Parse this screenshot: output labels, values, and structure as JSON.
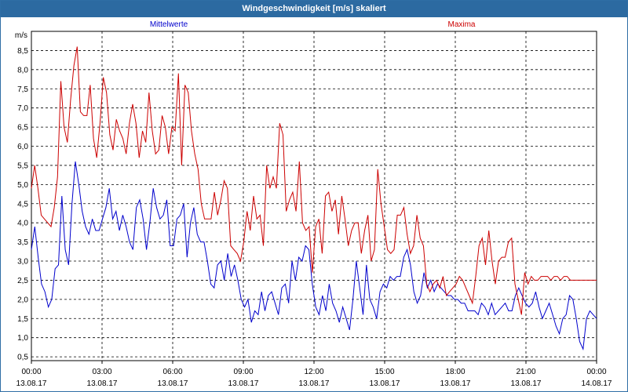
{
  "window": {
    "title": "Windgeschwindigkeit [m/s] skaliert"
  },
  "chart_data": {
    "type": "line",
    "title": "Windgeschwindigkeit [m/s] skaliert",
    "ylabel": "m/s",
    "ylim": [
      0.4,
      9.0
    ],
    "xlim_hours": [
      0,
      24
    ],
    "grid": true,
    "yticks": [
      "0,5",
      "1,0",
      "1,5",
      "2,0",
      "2,5",
      "3,0",
      "3,5",
      "4,0",
      "4,5",
      "5,0",
      "5,5",
      "6,0",
      "6,5",
      "7,0",
      "7,5",
      "8,0",
      "8,5"
    ],
    "xticks": [
      {
        "time": "00:00",
        "date": "13.08.17"
      },
      {
        "time": "03:00",
        "date": "13.08.17"
      },
      {
        "time": "06:00",
        "date": "13.08.17"
      },
      {
        "time": "09:00",
        "date": "13.08.17"
      },
      {
        "time": "12:00",
        "date": "13.08.17"
      },
      {
        "time": "15:00",
        "date": "13.08.17"
      },
      {
        "time": "18:00",
        "date": "13.08.17"
      },
      {
        "time": "21:00",
        "date": "13.08.17"
      },
      {
        "time": "00:00",
        "date": "14.08.17"
      }
    ],
    "series": [
      {
        "name": "Mittelwerte",
        "color": "#0000cc",
        "values": [
          3.3,
          3.9,
          3.1,
          2.4,
          2.2,
          1.8,
          2.0,
          2.8,
          2.9,
          4.7,
          3.3,
          2.9,
          4.5,
          5.6,
          5.0,
          4.3,
          3.9,
          3.7,
          4.1,
          3.8,
          3.8,
          4.1,
          4.4,
          4.9,
          4.1,
          4.3,
          3.8,
          4.2,
          3.9,
          3.5,
          3.3,
          4.4,
          4.6,
          4.1,
          3.3,
          4.0,
          4.9,
          4.4,
          4.1,
          4.2,
          4.6,
          3.4,
          3.4,
          4.1,
          4.2,
          4.5,
          3.1,
          4.0,
          4.4,
          3.7,
          3.5,
          3.5,
          3.0,
          2.4,
          2.3,
          2.9,
          3.0,
          2.5,
          3.2,
          2.6,
          2.9,
          2.5,
          2.0,
          1.8,
          2.0,
          1.4,
          1.7,
          1.6,
          2.2,
          1.7,
          2.1,
          2.2,
          1.9,
          1.6,
          2.3,
          2.4,
          1.9,
          3.0,
          2.5,
          3.1,
          3.0,
          3.4,
          3.3,
          2.4,
          1.8,
          1.6,
          2.1,
          1.7,
          2.4,
          1.9,
          1.7,
          1.4,
          1.8,
          1.5,
          1.2,
          2.0,
          3.0,
          2.3,
          1.6,
          2.9,
          2.0,
          1.8,
          1.5,
          2.2,
          2.4,
          2.3,
          2.6,
          2.5,
          2.6,
          2.6,
          3.1,
          3.3,
          2.9,
          2.2,
          1.9,
          2.1,
          2.7,
          2.3,
          2.5,
          2.2,
          2.4,
          2.3,
          2.2,
          2.1,
          2.1,
          2.0,
          2.0,
          1.9,
          1.9,
          1.7,
          1.7,
          1.7,
          1.6,
          1.9,
          1.8,
          1.6,
          1.9,
          1.6,
          1.7,
          1.8,
          1.9,
          1.7,
          1.7,
          2.1,
          2.3,
          2.1,
          1.9,
          1.8,
          1.9,
          2.2,
          1.8,
          1.5,
          1.7,
          1.9,
          1.6,
          1.3,
          1.1,
          1.5,
          1.6,
          2.1,
          2.0,
          1.5,
          0.9,
          0.7,
          1.5,
          1.7,
          1.6,
          1.5
        ]
      },
      {
        "name": "Maxima",
        "color": "#cc0000",
        "values": [
          4.9,
          5.5,
          4.9,
          4.2,
          4.1,
          4.0,
          3.9,
          4.4,
          5.2,
          7.7,
          6.5,
          6.1,
          7.2,
          8.1,
          8.6,
          6.9,
          6.8,
          6.8,
          7.6,
          6.2,
          5.7,
          6.6,
          7.8,
          7.4,
          6.3,
          5.9,
          6.7,
          6.4,
          6.2,
          5.8,
          6.6,
          7.1,
          6.6,
          5.7,
          6.4,
          6.1,
          7.4,
          6.4,
          5.8,
          5.9,
          6.8,
          6.5,
          5.8,
          6.5,
          6.4,
          7.9,
          5.5,
          7.6,
          7.4,
          6.4,
          5.8,
          5.4,
          4.5,
          4.1,
          4.1,
          4.1,
          4.8,
          4.2,
          4.6,
          5.1,
          4.9,
          3.4,
          3.3,
          3.2,
          3.0,
          3.5,
          4.3,
          3.8,
          4.7,
          4.1,
          4.2,
          3.4,
          5.5,
          4.9,
          5.2,
          4.9,
          6.6,
          6.3,
          4.3,
          4.6,
          4.8,
          4.3,
          5.6,
          4.0,
          3.8,
          3.9,
          2.7,
          3.9,
          4.1,
          3.2,
          4.7,
          4.8,
          4.3,
          4.6,
          3.7,
          4.7,
          4.1,
          3.4,
          3.8,
          4.0,
          4.0,
          3.2,
          3.8,
          4.2,
          3.0,
          3.3,
          5.4,
          4.5,
          3.9,
          3.3,
          3.2,
          3.3,
          4.2,
          4.2,
          4.4,
          3.7,
          3.2,
          3.4,
          4.2,
          3.6,
          3.4,
          2.4,
          2.2,
          2.4,
          2.5,
          2.3,
          2.6,
          2.1,
          2.2,
          2.3,
          2.4,
          2.6,
          2.5,
          2.3,
          2.1,
          1.9,
          2.6,
          3.4,
          3.6,
          2.9,
          3.8,
          3.0,
          2.4,
          3.0,
          3.1,
          3.1,
          3.5,
          3.6,
          2.4,
          2.0,
          1.6,
          2.7,
          2.4,
          2.6,
          2.5,
          2.5,
          2.6,
          2.6,
          2.6,
          2.5,
          2.6,
          2.6,
          2.5,
          2.6,
          2.6,
          2.5,
          2.5,
          2.5,
          2.5,
          2.5,
          2.5,
          2.5,
          2.5,
          2.5
        ]
      }
    ]
  }
}
